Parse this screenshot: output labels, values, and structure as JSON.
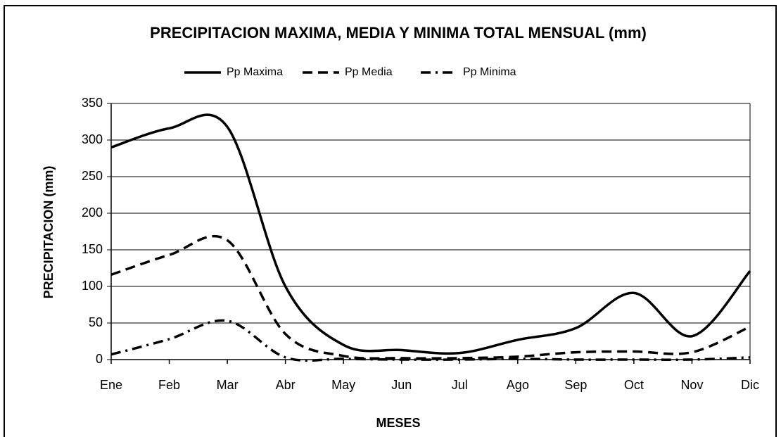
{
  "chart_data": {
    "type": "line",
    "title": "PRECIPITACION MAXIMA, MEDIA Y MINIMA TOTAL MENSUAL (mm)",
    "x_label": "MESES",
    "y_label": "PRECIPITACION (mm)",
    "categories": [
      "Ene",
      "Feb",
      "Mar",
      "Abr",
      "May",
      "Jun",
      "Jul",
      "Ago",
      "Sep",
      "Oct",
      "Nov",
      "Dic"
    ],
    "series": [
      {
        "name": "Pp Maxima",
        "color": "#000000",
        "dash": "solid",
        "values": [
          290,
          316,
          318,
          100,
          20,
          13,
          9,
          27,
          43,
          91,
          32,
          121
        ]
      },
      {
        "name": "Pp Media",
        "color": "#000000",
        "dash": "dashed",
        "values": [
          116,
          143,
          163,
          35,
          5,
          2,
          2,
          4,
          10,
          11,
          10,
          45
        ]
      },
      {
        "name": "Pp Minima",
        "color": "#000000",
        "dash": "dashdot",
        "values": [
          7,
          28,
          53,
          3,
          1,
          0,
          0,
          1,
          0,
          0,
          0,
          3
        ]
      }
    ],
    "ylim": [
      0,
      350
    ],
    "yticks": [
      0,
      50,
      100,
      150,
      200,
      250,
      300,
      350
    ],
    "grid": true,
    "legend": "top"
  }
}
